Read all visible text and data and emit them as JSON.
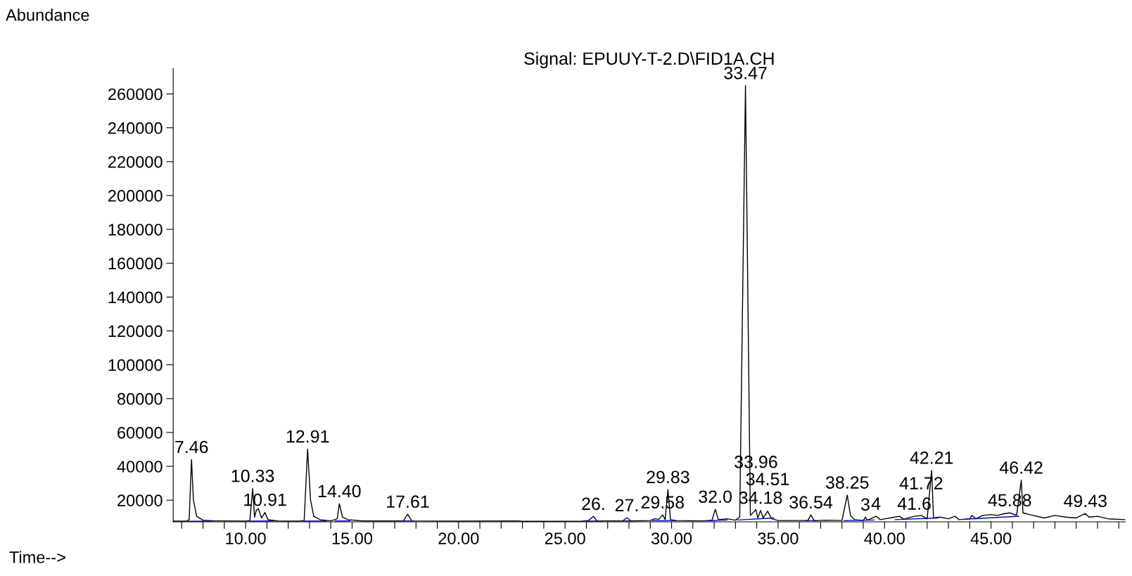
{
  "chart_data": {
    "type": "line",
    "title": "Signal: EPUUY-T-2.D\\FID1A.CH",
    "xlabel": "Time-->",
    "ylabel": "Abundance",
    "xlim": [
      6.6,
      51.3
    ],
    "ylim": [
      7200,
      275000
    ],
    "xticks": [
      {
        "value": 7,
        "label": null
      },
      {
        "value": 8,
        "label": null
      },
      {
        "value": 9,
        "label": null
      },
      {
        "value": 10,
        "label": "10.00"
      },
      {
        "value": 11,
        "label": null
      },
      {
        "value": 12,
        "label": null
      },
      {
        "value": 13,
        "label": null
      },
      {
        "value": 14,
        "label": null
      },
      {
        "value": 15,
        "label": "15.00"
      },
      {
        "value": 16,
        "label": null
      },
      {
        "value": 17,
        "label": null
      },
      {
        "value": 18,
        "label": null
      },
      {
        "value": 19,
        "label": null
      },
      {
        "value": 20,
        "label": "20.00"
      },
      {
        "value": 21,
        "label": null
      },
      {
        "value": 22,
        "label": null
      },
      {
        "value": 23,
        "label": null
      },
      {
        "value": 24,
        "label": null
      },
      {
        "value": 25,
        "label": "25.00"
      },
      {
        "value": 26,
        "label": null
      },
      {
        "value": 27,
        "label": null
      },
      {
        "value": 28,
        "label": null
      },
      {
        "value": 29,
        "label": null
      },
      {
        "value": 30,
        "label": "30.00"
      },
      {
        "value": 31,
        "label": null
      },
      {
        "value": 32,
        "label": null
      },
      {
        "value": 33,
        "label": null
      },
      {
        "value": 34,
        "label": null
      },
      {
        "value": 35,
        "label": "35.00"
      },
      {
        "value": 36,
        "label": null
      },
      {
        "value": 37,
        "label": null
      },
      {
        "value": 38,
        "label": null
      },
      {
        "value": 39,
        "label": null
      },
      {
        "value": 40,
        "label": "40.00"
      },
      {
        "value": 41,
        "label": null
      },
      {
        "value": 42,
        "label": null
      },
      {
        "value": 43,
        "label": null
      },
      {
        "value": 44,
        "label": null
      },
      {
        "value": 45,
        "label": "45.00"
      },
      {
        "value": 46,
        "label": null
      },
      {
        "value": 47,
        "label": null
      },
      {
        "value": 48,
        "label": null
      },
      {
        "value": 49,
        "label": null
      },
      {
        "value": 50,
        "label": null
      },
      {
        "value": 51,
        "label": null
      }
    ],
    "yticks": [
      20000,
      40000,
      60000,
      80000,
      100000,
      120000,
      140000,
      160000,
      180000,
      200000,
      220000,
      240000,
      260000
    ],
    "grid": false,
    "marker": "none",
    "line_style": "solid",
    "series": [
      {
        "color": "#000000",
        "x": [
          6.6,
          7.2,
          7.35,
          7.46,
          7.55,
          7.7,
          8.0,
          8.5,
          9.0,
          10.0,
          10.2,
          10.33,
          10.42,
          10.5,
          10.6,
          10.75,
          10.91,
          11.05,
          11.5,
          12.5,
          12.75,
          12.91,
          13.05,
          13.2,
          13.5,
          14.0,
          14.3,
          14.4,
          14.55,
          14.8,
          15.5,
          17.4,
          17.61,
          17.8,
          20.0,
          22.8,
          23.0,
          25.8,
          26.1,
          26.33,
          26.5,
          27.7,
          27.9,
          28.1,
          29.0,
          29.2,
          29.4,
          29.58,
          29.7,
          29.83,
          29.95,
          30.2,
          31.5,
          31.9,
          32.05,
          32.2,
          32.6,
          33.0,
          33.2,
          33.47,
          33.7,
          33.96,
          34.05,
          34.18,
          34.3,
          34.51,
          34.7,
          35.0,
          36.4,
          36.54,
          36.7,
          37.2,
          38.0,
          38.25,
          38.4,
          38.6,
          39.0,
          39.1,
          39.2,
          39.6,
          39.8,
          40.7,
          40.9,
          41.4,
          41.72,
          42.0,
          42.21,
          42.3,
          42.6,
          43.0,
          43.3,
          43.5,
          44.0,
          44.1,
          44.3,
          44.6,
          45.0,
          45.3,
          45.6,
          45.88,
          46.2,
          46.42,
          46.5,
          46.8,
          47.5,
          48.0,
          48.5,
          49.0,
          49.43,
          49.6,
          50.0,
          50.5,
          51.3
        ],
        "values": [
          7600,
          7600,
          8500,
          44000,
          20000,
          10500,
          8200,
          7800,
          7800,
          7600,
          8000,
          26900,
          10000,
          14000,
          15000,
          9500,
          12800,
          8500,
          7700,
          7600,
          8000,
          50200,
          20000,
          10500,
          8500,
          7800,
          9000,
          17900,
          10000,
          8500,
          7700,
          7700,
          11700,
          7800,
          7600,
          7800,
          7500,
          7600,
          8000,
          10400,
          7800,
          7700,
          9600,
          7700,
          8000,
          9000,
          8700,
          11300,
          8500,
          26200,
          8500,
          8000,
          7800,
          8200,
          14600,
          8500,
          9000,
          8200,
          10000,
          264900,
          11000,
          14400,
          9500,
          14000,
          9500,
          13500,
          9000,
          8000,
          8000,
          11300,
          7800,
          8200,
          8000,
          23000,
          11000,
          8500,
          8000,
          10000,
          8200,
          10500,
          8500,
          10500,
          8800,
          10500,
          11000,
          9000,
          37600,
          9500,
          10000,
          9000,
          10500,
          8500,
          9000,
          11000,
          9000,
          11000,
          11500,
          11000,
          12000,
          12500,
          11000,
          31800,
          12500,
          11500,
          9500,
          11000,
          10000,
          9500,
          12100,
          10000,
          10500,
          9000,
          8500
        ]
      },
      {
        "color": "#0000cc",
        "x": [
          7.3,
          8.4,
          8.5,
          10.2,
          11.3,
          11.4,
          12.7,
          13.8,
          13.9,
          14.2,
          14.9,
          15.0,
          17.4,
          17.9,
          18.0,
          26.0,
          26.7,
          26.8,
          27.7,
          28.1,
          28.2,
          29.1,
          30.2,
          30.3,
          31.7,
          32.6,
          32.7,
          33.1,
          34.8,
          34.9,
          36.3,
          36.8,
          36.9,
          38.1,
          39.5,
          39.6,
          40.5,
          42.5,
          42.6,
          43.8,
          46.3
        ],
        "values": [
          7500,
          7600,
          null,
          7600,
          7700,
          null,
          7600,
          7700,
          null,
          7700,
          7800,
          null,
          7700,
          7700,
          null,
          7600,
          7700,
          null,
          7700,
          7700,
          null,
          7900,
          8000,
          null,
          7800,
          8300,
          null,
          8300,
          9500,
          null,
          7900,
          8000,
          null,
          7900,
          8300,
          null,
          8500,
          9500,
          null,
          8800,
          10500
        ]
      }
    ],
    "annotations": [
      {
        "text": "7.46",
        "x": 7.46,
        "y": 44000
      },
      {
        "text": "10.33",
        "x": 10.33,
        "y": 26900
      },
      {
        "text": "10.91",
        "x": 10.91,
        "y": 12800
      },
      {
        "text": "12.91",
        "x": 12.91,
        "y": 50200
      },
      {
        "text": "14.40",
        "x": 14.4,
        "y": 17900
      },
      {
        "text": "17.61",
        "x": 17.61,
        "y": 11700
      },
      {
        "text": "26.",
        "x": 26.33,
        "y": 10400
      },
      {
        "text": "27.",
        "x": 27.9,
        "y": 9600
      },
      {
        "text": "29.83",
        "x": 29.83,
        "y": 26200
      },
      {
        "text": "29.58",
        "x": 29.58,
        "y": 11300
      },
      {
        "text": "32.0",
        "x": 32.05,
        "y": 14600
      },
      {
        "text": "33.47",
        "x": 33.47,
        "y": 264900
      },
      {
        "text": "34.18",
        "x": 34.18,
        "y": 14000
      },
      {
        "text": "34.51",
        "x": 34.51,
        "y": 13500
      },
      {
        "text": "33.96",
        "x": 33.96,
        "y": 14400
      },
      {
        "text": "36.54",
        "x": 36.54,
        "y": 11300
      },
      {
        "text": "38.25",
        "x": 38.25,
        "y": 23000
      },
      {
        "text": "3",
        "x": 39.1,
        "y": 10000
      },
      {
        "text": "4",
        "x": 39.6,
        "y": 10500
      },
      {
        "text": "41.6",
        "x": 41.4,
        "y": 10500
      },
      {
        "text": "42.21",
        "x": 42.21,
        "y": 37600
      },
      {
        "text": "41.72",
        "x": 41.72,
        "y": 11000
      },
      {
        "text": "45.88",
        "x": 45.88,
        "y": 12500
      },
      {
        "text": "46.42",
        "x": 46.42,
        "y": 31800
      },
      {
        "text": "49.43",
        "x": 49.43,
        "y": 12100
      }
    ]
  }
}
